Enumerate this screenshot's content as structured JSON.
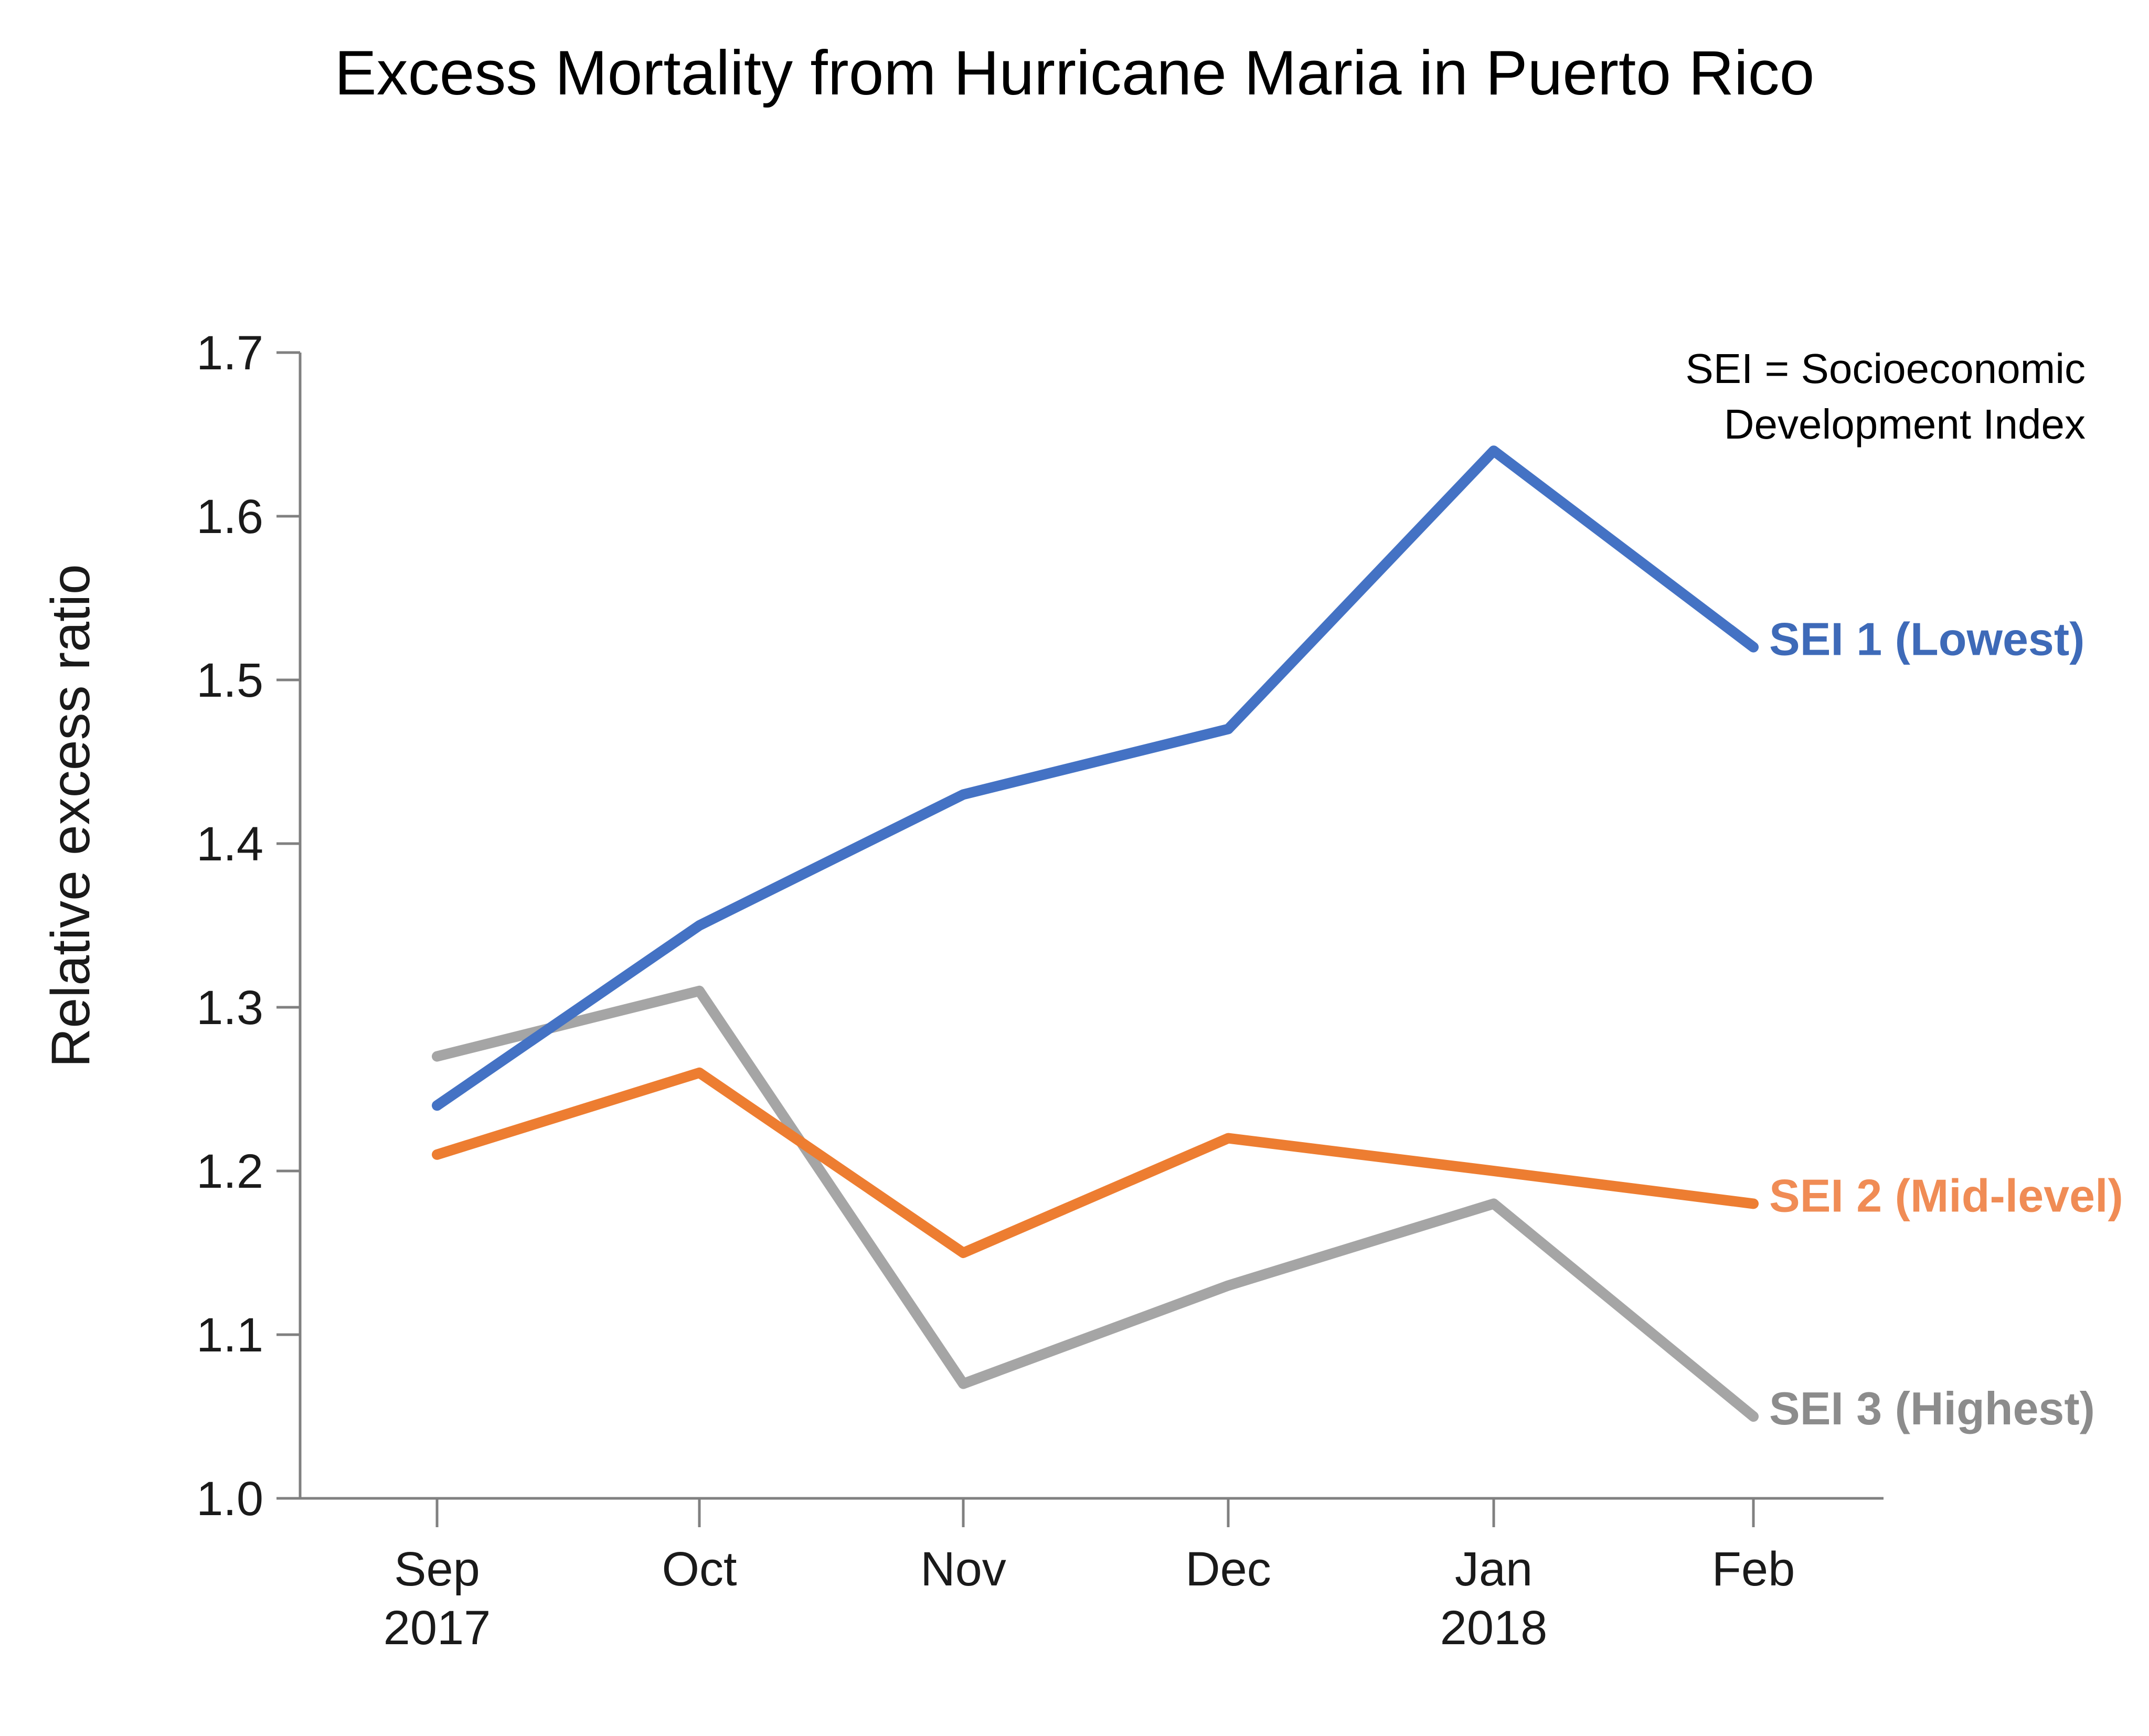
{
  "chart_data": {
    "type": "line",
    "title": "Excess Mortality from Hurricane Maria in Puerto Rico",
    "xlabel": "",
    "ylabel": "Relative excess ratio",
    "ylim": [
      1.0,
      1.7
    ],
    "yticks": [
      "1.0",
      "1.1",
      "1.2",
      "1.3",
      "1.4",
      "1.5",
      "1.6",
      "1.7"
    ],
    "categories": [
      [
        "Sep",
        "2017"
      ],
      [
        "Oct"
      ],
      [
        "Nov"
      ],
      [
        "Dec"
      ],
      [
        "Jan",
        "2018"
      ],
      [
        "Feb"
      ]
    ],
    "note": [
      "SEI = Socioeconomic",
      "Development Index"
    ],
    "grid": false,
    "legend": "inline labels at line ends",
    "series": [
      {
        "name": "SEI 1 (Lowest)",
        "color": "#4472C4",
        "label_color": "#3E6AB8",
        "values": [
          1.24,
          1.35,
          1.43,
          1.47,
          1.64,
          1.52
        ]
      },
      {
        "name": "SEI 2 (Mid-level)",
        "color": "#ED7D31",
        "label_color": "#F08C55",
        "values": [
          1.21,
          1.26,
          1.15,
          1.22,
          1.2,
          1.18
        ]
      },
      {
        "name": "SEI 3 (Highest)",
        "color": "#A5A5A5",
        "label_color": "#8C8C8C",
        "values": [
          1.27,
          1.31,
          1.07,
          1.13,
          1.18,
          1.05
        ]
      }
    ]
  }
}
